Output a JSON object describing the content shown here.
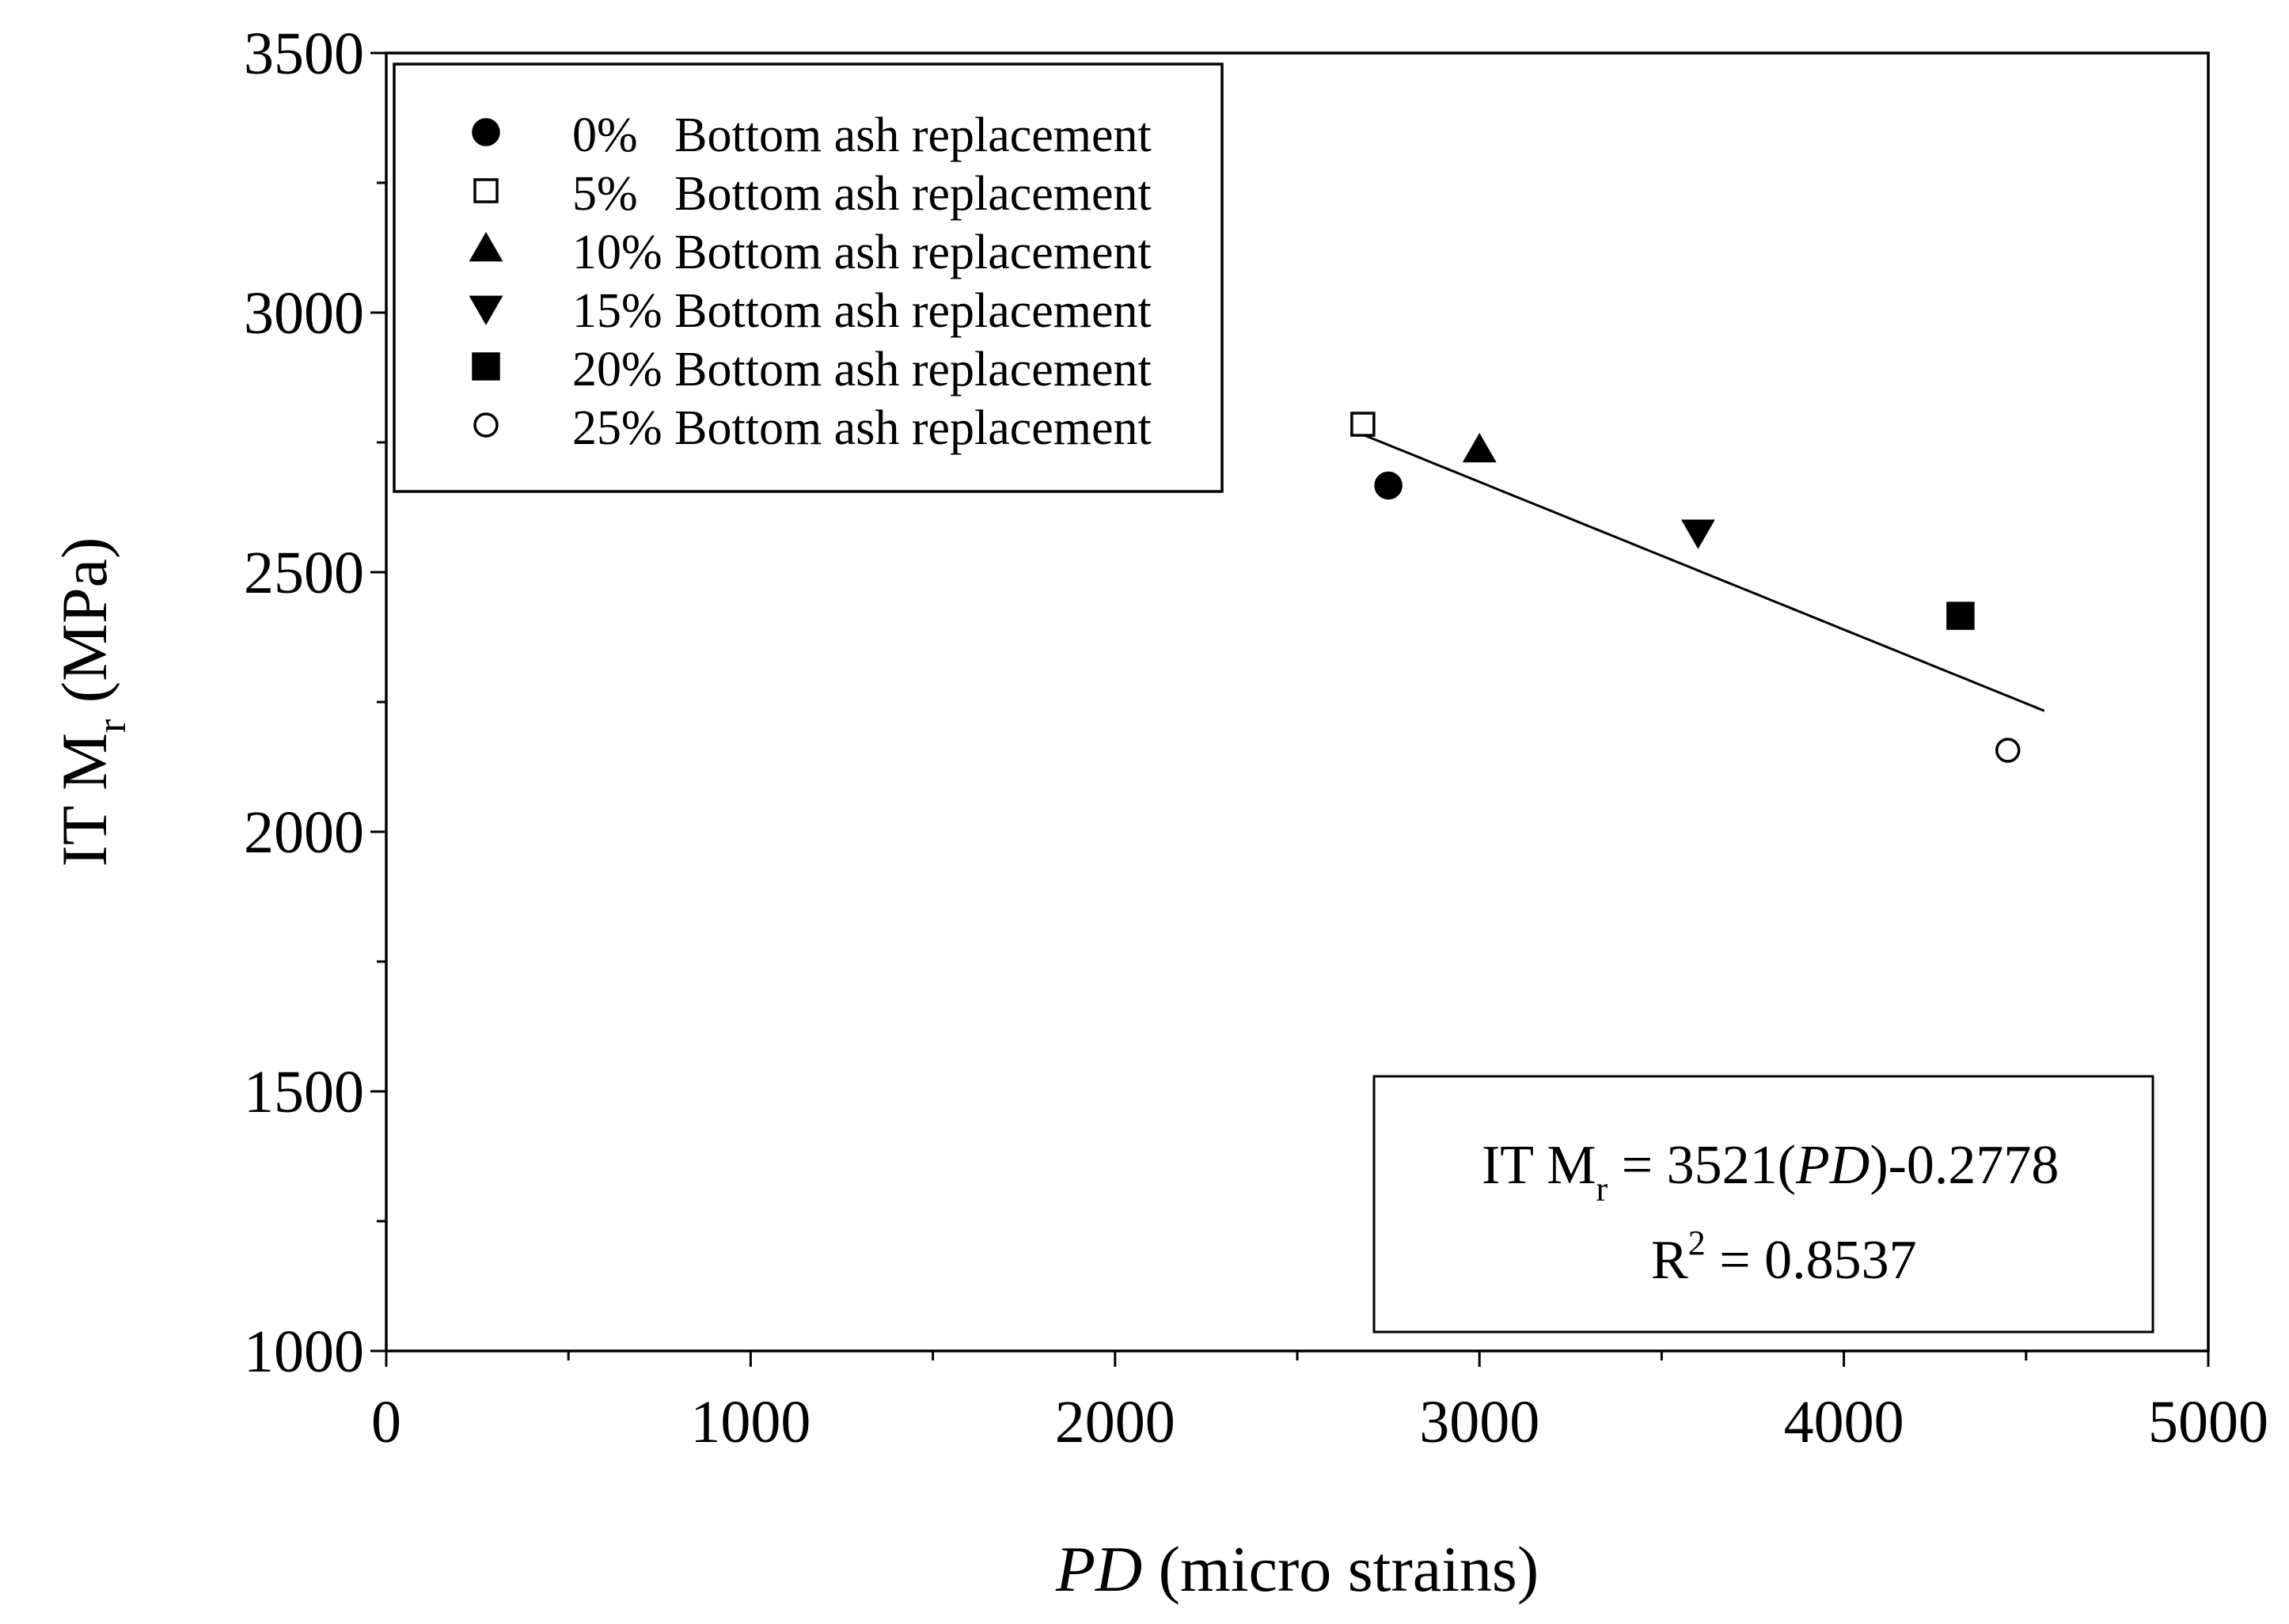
{
  "chart_data": {
    "type": "scatter",
    "title": "",
    "xlabel": {
      "italic": "PD",
      "rest": " (micro strains)"
    },
    "ylabel": {
      "base": "IT M",
      "sub": "r",
      "rest": " (MPa)"
    },
    "xlim": [
      0,
      5000
    ],
    "ylim": [
      1000,
      3500
    ],
    "xticks": [
      0,
      1000,
      2000,
      3000,
      4000,
      5000
    ],
    "yticks": [
      1000,
      1500,
      2000,
      2500,
      3000,
      3500
    ],
    "x_tick_labels": [
      "0",
      "1000",
      "2000",
      "3000",
      "4000",
      "5000"
    ],
    "y_tick_labels": [
      "1000",
      "1500",
      "2000",
      "2500",
      "3000",
      "3500"
    ],
    "grid": false,
    "legend_position": "top-left",
    "series": [
      {
        "name": "0%   Bottom ash replacement",
        "marker": "filled-circle",
        "x": [
          2750
        ],
        "y": [
          2667
        ]
      },
      {
        "name": "5%   Bottom ash replacement",
        "marker": "open-square",
        "x": [
          2680
        ],
        "y": [
          2785
        ]
      },
      {
        "name": "10% Bottom ash replacement",
        "marker": "filled-triangle-up",
        "x": [
          3000
        ],
        "y": [
          2735
        ]
      },
      {
        "name": "15% Bottom ash replacement",
        "marker": "filled-triangle-down",
        "x": [
          3600
        ],
        "y": [
          2578
        ]
      },
      {
        "name": "20% Bottom ash replacement",
        "marker": "filled-square",
        "x": [
          4320
        ],
        "y": [
          2416
        ]
      },
      {
        "name": "25% Bottom ash replacement",
        "marker": "open-circle",
        "x": [
          4450
        ],
        "y": [
          2157
        ]
      }
    ],
    "fit": {
      "type": "power",
      "coefficient": 3521,
      "exponent": -0.2778,
      "x_range": [
        2680,
        4550
      ],
      "equation": {
        "lhs_base": "IT M",
        "lhs_sub": "r",
        "mid": " = 3521(",
        "var": "PD",
        "tail": ")-0.2778"
      },
      "r2": {
        "base": "R",
        "sup": "2",
        "value": " = 0.8537"
      }
    }
  }
}
